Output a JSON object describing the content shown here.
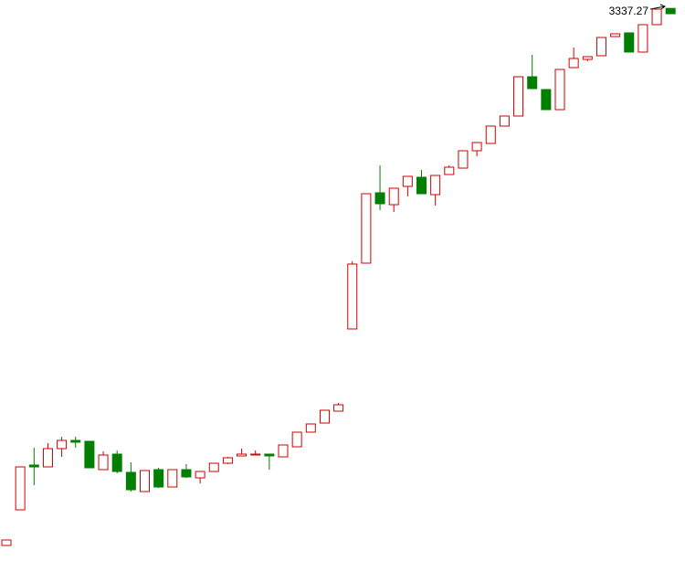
{
  "chart_data": {
    "type": "candlestick",
    "open": [
      1867.5,
      1965,
      2087.5,
      2082.5,
      2132.5,
      2155,
      2152.5,
      2075,
      2117.5,
      2067.5,
      2015,
      2075,
      2027.5,
      2075,
      2052.5,
      2070,
      2092.5,
      2112.5,
      2115,
      2117.5,
      2110,
      2137.5,
      2177.5,
      2202.5,
      2235,
      2460,
      2640,
      2832.5,
      2800,
      2850,
      2875,
      2827.5,
      2882.5,
      2900,
      2947.5,
      2967.5,
      3015,
      3042.5,
      3150,
      3115,
      3060,
      3175,
      3197.5,
      3207.5,
      3260,
      3270,
      3217.5,
      3292.5,
      3337
    ],
    "high": [
      1882.5,
      2082.5,
      2135,
      2147.5,
      2165,
      2165,
      2152.5,
      2125,
      2127.5,
      2095,
      2072.5,
      2080,
      2075,
      2090,
      2070,
      2092.5,
      2110,
      2132.5,
      2127.5,
      2117.5,
      2142.5,
      2177.5,
      2200,
      2237.5,
      2257.5,
      2645,
      2830,
      2907.5,
      2845,
      2877.5,
      2895,
      2880,
      2907.5,
      2947.5,
      2970,
      3015,
      3042.5,
      3150,
      3210,
      3115,
      3170,
      3230,
      3205,
      3257.5,
      3267.5,
      3270,
      3292.5,
      3335,
      3337.27
    ],
    "low": [
      1867.5,
      1965,
      2032.5,
      2082.5,
      2110,
      2135,
      2080,
      2075,
      2065,
      2015,
      2015,
      2025,
      2027.5,
      2052.5,
      2037.5,
      2070,
      2090,
      2112.5,
      2115,
      2075,
      2110,
      2137.5,
      2177.5,
      2202.5,
      2235,
      2460,
      2640,
      2785,
      2780,
      2822.5,
      2830,
      2797.5,
      2882.5,
      2900,
      2932.5,
      2967.5,
      3015,
      3042.5,
      3117.5,
      3060,
      3060,
      3175,
      3192.5,
      3207.5,
      3260,
      3217.5,
      3217.5,
      3292.5,
      3322.5
    ],
    "close": [
      1882.5,
      2082.5,
      2082.5,
      2132.5,
      2155,
      2150,
      2080,
      2115,
      2070,
      2020,
      2072.5,
      2027.5,
      2075,
      2055,
      2070,
      2092.5,
      2107.5,
      2117.5,
      2117.5,
      2112.5,
      2142.5,
      2177.5,
      2200,
      2237.5,
      2252.5,
      2637.5,
      2830,
      2802.5,
      2845,
      2877.5,
      2830,
      2880,
      2902.5,
      2947.5,
      2970,
      3015,
      3042.5,
      3150,
      3117.5,
      3060,
      3170,
      3200,
      3205,
      3257.5,
      3267.5,
      3217.5,
      3292.5,
      3335,
      3322.5
    ],
    "ylim": [
      1860,
      3350
    ],
    "up_color": "#d00000",
    "down_color": "#007f00"
  }
}
